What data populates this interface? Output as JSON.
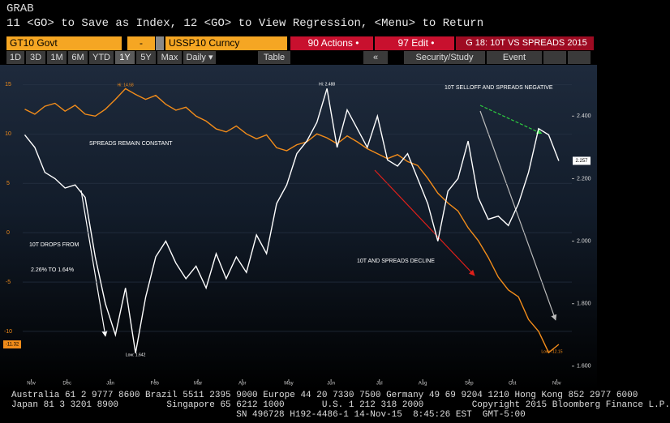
{
  "header": {
    "code": "GRAB",
    "command": "11 <GO> to Save as Index, 12 <GO> to View Regression, <Menu> to Return"
  },
  "fields": {
    "security1": "GT10 Govt",
    "operator": "-",
    "security2": "USSP10 Curncy",
    "actions": "90 Actions •",
    "edit": "97 Edit •"
  },
  "toolbar": {
    "buttons": [
      "1D",
      "3D",
      "1M",
      "6M",
      "YTD",
      "1Y",
      "5Y",
      "Max",
      "Daily ▾",
      "Table",
      "«",
      "Security/Study",
      "Event"
    ]
  },
  "chart_data": {
    "type": "line",
    "title": "G 18: 10T VS SPREADS 2015",
    "x": [
      0,
      1,
      2,
      3,
      4,
      5,
      6,
      7,
      8,
      9,
      10,
      11,
      12,
      13,
      14,
      15,
      16,
      17,
      18,
      19,
      20,
      21,
      22,
      23,
      24,
      25,
      26,
      27,
      28,
      29,
      30,
      31,
      32,
      33,
      34,
      35,
      36,
      37,
      38,
      39,
      40,
      41,
      42,
      43,
      44,
      45,
      46,
      47,
      48,
      49,
      50,
      51,
      52,
      53
    ],
    "xlim": [
      -0.2,
      54.3
    ],
    "xticks": [
      {
        "value": 0.65,
        "label": "Nov"
      },
      {
        "value": 4.2,
        "label": "Dec"
      },
      {
        "value": 8.5,
        "label": "Jan"
      },
      {
        "value": 12.9,
        "label": "Feb"
      },
      {
        "value": 17.2,
        "label": "Mar"
      },
      {
        "value": 21.6,
        "label": "Apr"
      },
      {
        "value": 26.2,
        "label": "May"
      },
      {
        "value": 30.4,
        "label": "Jun"
      },
      {
        "value": 35.2,
        "label": "Jul"
      },
      {
        "value": 39.5,
        "label": "Aug"
      },
      {
        "value": 44.1,
        "label": "Sep"
      },
      {
        "value": 48.4,
        "label": "Oct"
      },
      {
        "value": 52.8,
        "label": "Nov"
      }
    ],
    "ylim": [
      -14.6,
      15.6
    ],
    "yticks": [
      15,
      10,
      5,
      0,
      -5,
      -10
    ],
    "y2lim": [
      1.566,
      2.52
    ],
    "y2ticks": [
      {
        "value": 1.6,
        "label": "1.600"
      },
      {
        "value": 1.8,
        "label": "1.800"
      },
      {
        "value": 2.0,
        "label": "2.000"
      },
      {
        "value": 2.2,
        "label": "2.200"
      },
      {
        "value": 2.4,
        "label": "2.400"
      }
    ],
    "series": [
      {
        "name": "USSP10 Curncy",
        "color": "#f28c1a",
        "values": [
          12.5,
          12.0,
          12.8,
          13.1,
          12.3,
          12.9,
          12.0,
          11.8,
          12.5,
          13.5,
          14.58,
          14.0,
          13.5,
          13.9,
          13.0,
          12.4,
          12.7,
          11.8,
          11.3,
          10.5,
          10.2,
          10.8,
          10.0,
          9.5,
          9.9,
          8.6,
          8.3,
          8.9,
          9.2,
          10.0,
          9.6,
          9.0,
          9.8,
          9.2,
          8.5,
          8.0,
          7.5,
          7.9,
          7.2,
          6.8,
          5.5,
          4.0,
          3.0,
          2.2,
          0.5,
          -0.8,
          -2.5,
          -4.5,
          -5.8,
          -6.5,
          -8.8,
          -10.0,
          -12.15,
          -11.32
        ]
      },
      {
        "name": "GT10 Govt",
        "color": "#ffffff",
        "axis": "y2",
        "values": [
          2.34,
          2.3,
          2.22,
          2.2,
          2.17,
          2.18,
          2.14,
          1.95,
          1.8,
          1.7,
          1.85,
          1.642,
          1.82,
          1.95,
          2.0,
          1.93,
          1.88,
          1.92,
          1.85,
          1.96,
          1.88,
          1.95,
          1.9,
          2.02,
          1.96,
          2.12,
          2.18,
          2.28,
          2.32,
          2.38,
          2.488,
          2.3,
          2.42,
          2.36,
          2.3,
          2.4,
          2.26,
          2.24,
          2.28,
          2.2,
          2.12,
          2.0,
          2.16,
          2.2,
          2.32,
          2.14,
          2.07,
          2.08,
          2.05,
          2.12,
          2.22,
          2.36,
          2.34,
          2.257
        ]
      }
    ],
    "last_value_labels": [
      "-11.32",
      "2.257"
    ],
    "annotations": [
      "Hi: 14.58",
      "Low: -12.15",
      "Hi: 2.488",
      "Low: 1.642",
      "SPREADS REMAIN CONSTANT",
      "10T DROPS FROM",
      "2.26% TO 1.64%",
      "10T AND SPREADS DECLINE",
      "10T SELLOFF AND SPREADS NEGATIVE"
    ]
  },
  "footer": {
    "lines": [
      "Australia 61 2 9777 8600 Brazil 5511 2395 9000 Europe 44 20 7330 7500 Germany 49 69 9204 1210 Hong Kong 852 2977 6000",
      "Japan 81 3 3201 8900         Singapore 65 6212 1000       U.S. 1 212 318 2000         Copyright 2015 Bloomberg Finance L.P.",
      "                                          SN 496728 H192-4486-1 14-Nov-15  8:45:26 EST  GMT-5:00"
    ]
  }
}
